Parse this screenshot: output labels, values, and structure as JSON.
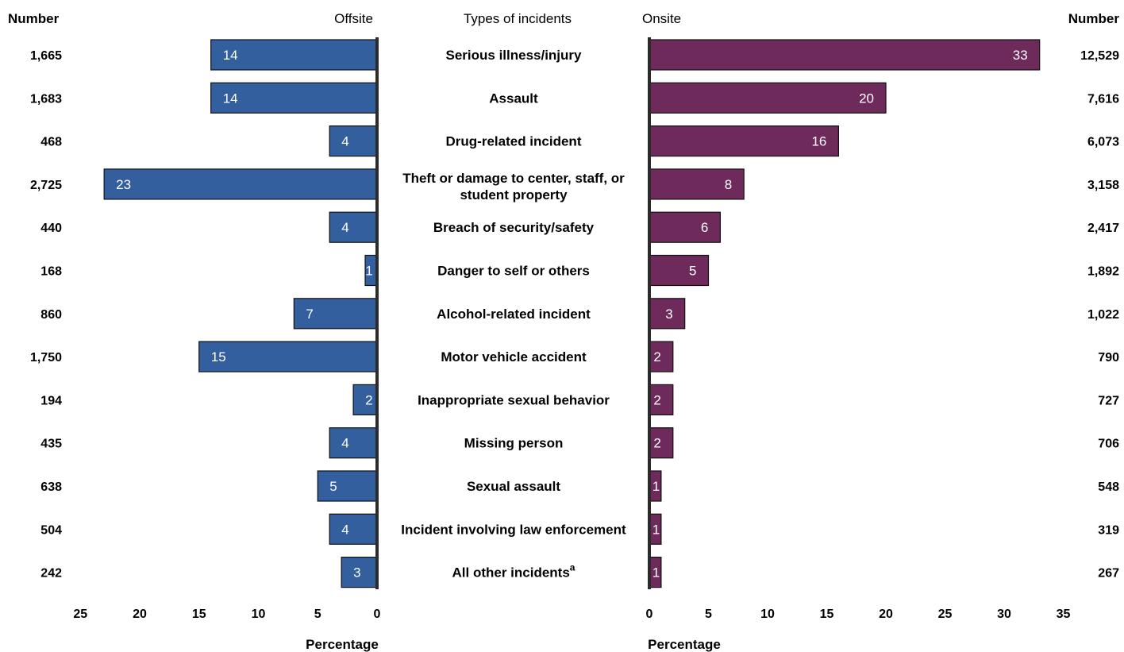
{
  "chart_data": {
    "type": "bar",
    "headers": {
      "left_number": "Number",
      "offsite": "Offsite",
      "types": "Types of incidents",
      "onsite": "Onsite",
      "right_number": "Number"
    },
    "categories": [
      [
        "Serious illness/injury"
      ],
      [
        "Assault"
      ],
      [
        "Drug-related incident"
      ],
      [
        "Theft or damage to center, staff, or",
        "student property"
      ],
      [
        "Breach of security/safety"
      ],
      [
        "Danger to self or others"
      ],
      [
        "Alcohol-related incident"
      ],
      [
        "Motor vehicle accident"
      ],
      [
        "Inappropriate sexual behavior"
      ],
      [
        "Missing person"
      ],
      [
        "Sexual assault"
      ],
      [
        "Incident involving law enforcement"
      ],
      [
        "All other incidents"
      ]
    ],
    "category_footnote": {
      "index": 12,
      "mark": "a"
    },
    "series": [
      {
        "name": "Offsite",
        "color": "#345f9f",
        "values": [
          14,
          14,
          4,
          23,
          4,
          1,
          7,
          15,
          2,
          4,
          5,
          4,
          3
        ],
        "numbers": [
          "1,665",
          "1,683",
          "468",
          "2,725",
          "440",
          "168",
          "860",
          "1,750",
          "194",
          "435",
          "638",
          "504",
          "242"
        ]
      },
      {
        "name": "Onsite",
        "color": "#6f2a5c",
        "values": [
          33,
          20,
          16,
          8,
          6,
          5,
          3,
          2,
          2,
          2,
          1,
          1,
          1
        ],
        "numbers": [
          "12,529",
          "7,616",
          "6,073",
          "3,158",
          "2,417",
          "1,892",
          "1,022",
          "790",
          "727",
          "706",
          "548",
          "319",
          "267"
        ]
      }
    ],
    "left_axis": {
      "ticks": [
        25,
        20,
        15,
        10,
        5,
        0
      ],
      "xlim": [
        0,
        25
      ],
      "direction": "reversed"
    },
    "right_axis": {
      "ticks": [
        0,
        5,
        10,
        15,
        20,
        25,
        30,
        35
      ],
      "xlim": [
        0,
        35
      ]
    },
    "xlabel_left": "Percentage",
    "xlabel_right": "Percentage",
    "grid": false
  }
}
